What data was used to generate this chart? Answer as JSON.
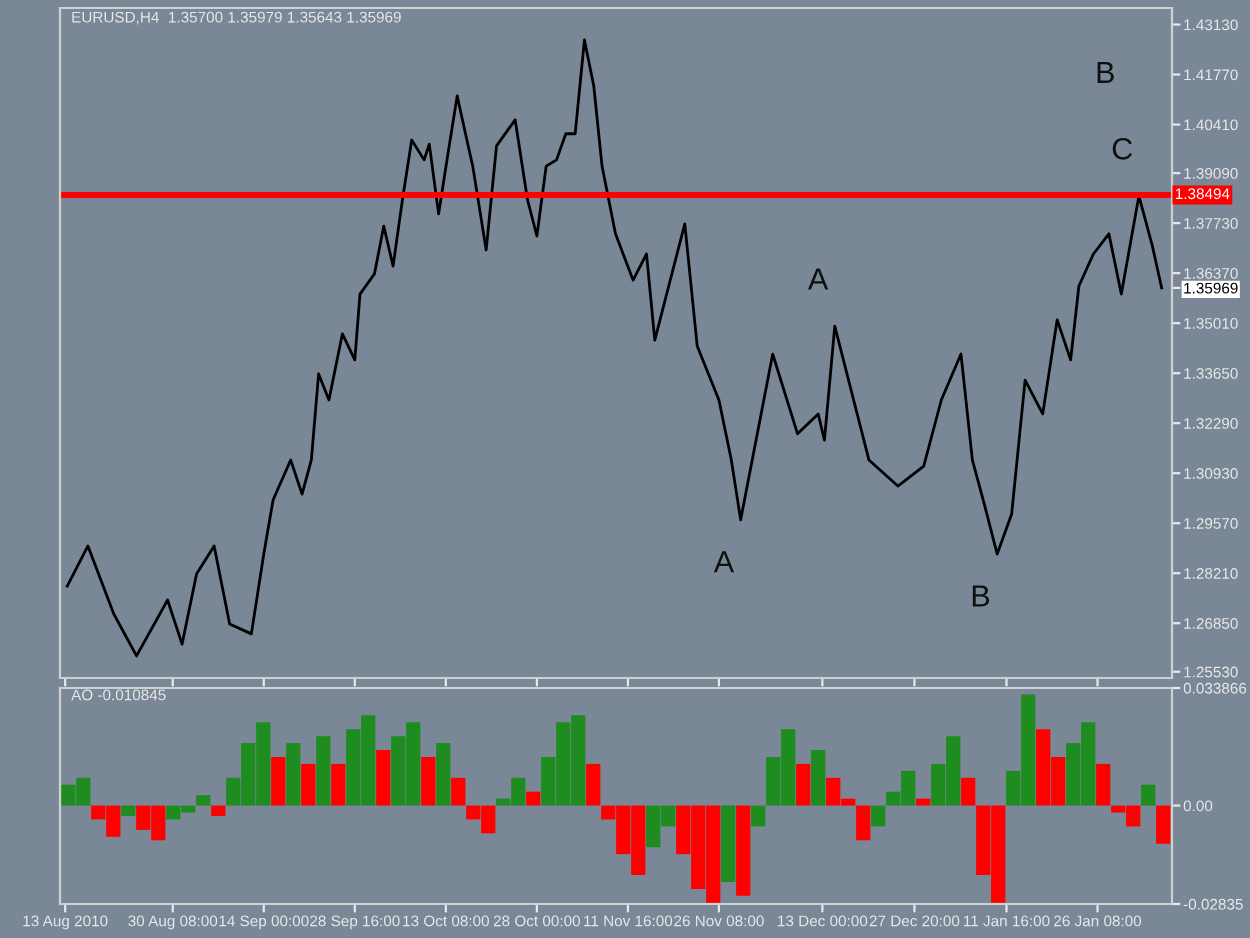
{
  "chart_data": [
    {
      "type": "line",
      "title": "EURUSD,H4  1.35700 1.35979 1.35643 1.35969",
      "tick_labels": "y",
      "grid": false,
      "legend": false,
      "marker": "none",
      "line_style": "solid",
      "xlim": [
        "2010-08-12T04:00",
        "2011-02-07T08:00"
      ],
      "ylim": [
        1.2536,
        1.4358
      ],
      "yticks": [
        {
          "value": 1.4313,
          "label": "1.43130"
        },
        {
          "value": 1.4177,
          "label": "1.41770"
        },
        {
          "value": 1.4041,
          "label": "1.40410"
        },
        {
          "value": 1.3909,
          "label": "1.39090"
        },
        {
          "value": 1.3773,
          "label": "1.37730"
        },
        {
          "value": 1.3637,
          "label": "1.36370"
        },
        {
          "value": 1.35969,
          "label": "1.35969"
        },
        {
          "value": 1.3501,
          "label": "1.35010"
        },
        {
          "value": 1.3365,
          "label": "1.33650"
        },
        {
          "value": 1.3229,
          "label": "1.32290"
        },
        {
          "value": 1.3093,
          "label": "1.30930"
        },
        {
          "value": 1.2957,
          "label": "1.29570"
        },
        {
          "value": 1.2821,
          "label": "1.28210"
        },
        {
          "value": 1.2685,
          "label": "1.26850"
        },
        {
          "value": 1.2553,
          "label": "1.25530"
        }
      ],
      "xticks": [
        {
          "value": "2010-08-13T00:00",
          "label": null
        },
        {
          "value": "2010-08-30T08:00",
          "label": null
        },
        {
          "value": "2010-09-14T00:00",
          "label": null
        },
        {
          "value": "2010-09-28T16:00",
          "label": null
        },
        {
          "value": "2010-10-13T08:00",
          "label": null
        },
        {
          "value": "2010-10-28T00:00",
          "label": null
        },
        {
          "value": "2010-11-11T16:00",
          "label": null
        },
        {
          "value": "2010-11-26T08:00",
          "label": null
        },
        {
          "value": "2010-12-13T00:00",
          "label": null
        },
        {
          "value": "2010-12-27T20:00",
          "label": null
        },
        {
          "value": "2011-01-11T16:00",
          "label": null
        },
        {
          "value": "2011-01-26T08:00",
          "label": null
        }
      ],
      "series": [
        {
          "color": "#000000",
          "x": [
            "2010-08-13T08:00",
            "2010-08-16T16:00",
            "2010-08-20T20:00",
            "2010-08-24T12:00",
            "2010-08-29T12:00",
            "2010-08-31T20:00",
            "2010-09-03T04:00",
            "2010-09-06T00:00",
            "2010-09-08T12:00",
            "2010-09-12T00:00",
            "2010-09-14T00:00",
            "2010-09-15T12:00",
            "2010-09-18T08:00",
            "2010-09-20T04:00",
            "2010-09-21T16:00",
            "2010-09-22T20:00",
            "2010-09-24T12:00",
            "2010-09-26T16:00",
            "2010-09-28T16:00",
            "2010-09-29T12:00",
            "2010-10-01T20:00",
            "2010-10-03T08:00",
            "2010-10-04T20:00",
            "2010-10-06T08:00",
            "2010-10-07T20:00",
            "2010-10-09T20:00",
            "2010-10-10T16:00",
            "2010-10-12T04:00",
            "2010-10-13T16:00",
            "2010-10-15T04:00",
            "2010-10-16T12:00",
            "2010-10-17T16:00",
            "2010-10-19T20:00",
            "2010-10-21T12:00",
            "2010-10-24T12:00",
            "2010-10-26T12:00",
            "2010-10-28T00:00",
            "2010-10-29T12:00",
            "2010-10-31T04:00",
            "2010-11-01T16:00",
            "2010-11-03T04:00",
            "2010-11-04T16:00",
            "2010-11-06T04:00",
            "2010-11-07T12:00",
            "2010-11-09T16:00",
            "2010-11-12T12:00",
            "2010-11-14T16:00",
            "2010-11-16T00:00",
            "2010-11-20T20:00",
            "2010-11-22T20:00",
            "2010-11-26T08:00",
            "2010-11-28T08:00",
            "2010-11-29T20:00",
            "2010-12-05T00:00",
            "2010-12-09T00:00",
            "2010-12-12T08:00",
            "2010-12-13T08:00",
            "2010-12-15T00:00",
            "2010-12-20T12:00",
            "2010-12-25T04:00",
            "2010-12-29T08:00",
            "2011-01-01T04:00",
            "2011-01-04T08:00",
            "2011-01-06T04:00",
            "2011-01-08T04:00",
            "2011-01-10T04:00",
            "2011-01-12T12:00",
            "2011-01-14T16:00",
            "2011-01-17T12:00",
            "2011-01-19T20:00",
            "2011-01-22T00:00",
            "2011-01-23T08:00",
            "2011-01-25T16:00",
            "2011-01-28T04:00",
            "2011-01-30T04:00",
            "2011-02-02T00:00",
            "2011-02-04T04:00",
            "2011-02-05T16:00"
          ],
          "values": [
            1.2786,
            1.2895,
            1.271,
            1.2596,
            1.2748,
            1.2628,
            1.2819,
            1.2895,
            1.2683,
            1.2656,
            1.2873,
            1.302,
            1.3129,
            1.3036,
            1.3129,
            1.3363,
            1.3292,
            1.3472,
            1.3401,
            1.358,
            1.3635,
            1.3765,
            1.3656,
            1.3836,
            1.3999,
            1.3945,
            1.3988,
            1.3798,
            1.3961,
            1.4119,
            1.4016,
            1.3928,
            1.37,
            1.3983,
            1.4054,
            1.3836,
            1.3738,
            1.3928,
            1.3945,
            1.4016,
            1.4016,
            1.4271,
            1.4146,
            1.3928,
            1.3744,
            1.3618,
            1.3689,
            1.3455,
            1.3771,
            1.3439,
            1.3292,
            1.3129,
            1.2966,
            1.3417,
            1.32,
            1.3254,
            1.3183,
            1.3493,
            1.3129,
            1.3058,
            1.3112,
            1.3292,
            1.3417,
            1.3129,
            1.3004,
            1.2873,
            1.2982,
            1.3346,
            1.3254,
            1.351,
            1.3401,
            1.3602,
            1.3689,
            1.3744,
            1.358,
            1.3847,
            1.3711,
            1.35969
          ]
        }
      ],
      "ref_lines": [
        {
          "axis": "y",
          "value": 1.38494,
          "label": "1.38494",
          "color": "#ff0000",
          "line_style": "solid"
        }
      ],
      "annotations": [
        {
          "text": "A",
          "x": "2010-11-29T20:00",
          "y": 1.2966
        },
        {
          "text": "A",
          "x": "2010-12-15T00:00",
          "y": 1.3493
        },
        {
          "text": "B",
          "x": "2011-01-10T04:00",
          "y": 1.2873
        },
        {
          "text": "C",
          "x": "2011-02-02T00:00",
          "y": 1.3847
        },
        "B"
      ]
    },
    {
      "type": "bar",
      "title": "AO -0.010845",
      "grid": false,
      "legend": false,
      "xlim": [
        "2010-08-12T04:00",
        "2011-02-07T08:00"
      ],
      "ylim": [
        -0.02835,
        0.033866
      ],
      "yticks": [
        {
          "value": 0.033866,
          "label": "0.033866"
        },
        {
          "value": 0,
          "label": "0.00"
        },
        {
          "value": -0.02835,
          "label": "-0.02835"
        }
      ],
      "xticks": [
        {
          "value": "2010-08-13T00:00",
          "label": "13 Aug 2010"
        },
        {
          "value": "2010-08-30T08:00",
          "label": "30 Aug 08:00"
        },
        {
          "value": "2010-09-14T00:00",
          "label": "14 Sep 00:00"
        },
        {
          "value": "2010-09-28T16:00",
          "label": "28 Sep 16:00"
        },
        {
          "value": "2010-10-13T08:00",
          "label": "13 Oct 08:00"
        },
        {
          "value": "2010-10-28T00:00",
          "label": "28 Oct 00:00"
        },
        {
          "value": "2010-11-11T16:00",
          "label": "11 Nov 16:00"
        },
        {
          "value": "2010-11-26T08:00",
          "label": "26 Nov 08:00"
        },
        {
          "value": "2010-12-13T00:00",
          "label": "13 Dec 00:00"
        },
        {
          "value": "2010-12-27T20:00",
          "label": "27 Dec 20:00"
        },
        {
          "value": "2011-01-11T16:00",
          "label": "11 Jan 16:00"
        },
        {
          "value": "2011-01-26T08:00",
          "label": "26 Jan 08:00"
        }
      ],
      "x": [
        "2010-08-13T12:00",
        "2010-08-15T22:00",
        "2010-08-18T08:00",
        "2010-08-20T18:00",
        "2010-08-23T04:00",
        "2010-08-25T14:00",
        "2010-08-28T00:00",
        "2010-08-30T10:00",
        "2010-09-01T20:00",
        "2010-09-04T06:00",
        "2010-09-06T16:00",
        "2010-09-09T02:00",
        "2010-09-11T12:00",
        "2010-09-13T22:00",
        "2010-09-16T08:00",
        "2010-09-18T18:00",
        "2010-09-21T04:00",
        "2010-09-23T14:00",
        "2010-09-26T00:00",
        "2010-09-28T10:00",
        "2010-09-30T20:00",
        "2010-10-03T06:00",
        "2010-10-05T16:00",
        "2010-10-08T02:00",
        "2010-10-10T12:00",
        "2010-10-12T22:00",
        "2010-10-15T08:00",
        "2010-10-17T18:00",
        "2010-10-20T04:00",
        "2010-10-22T14:00",
        "2010-10-25T00:00",
        "2010-10-27T10:00",
        "2010-10-29T20:00",
        "2010-11-01T06:00",
        "2010-11-03T16:00",
        "2010-11-06T02:00",
        "2010-11-08T12:00",
        "2010-11-10T22:00",
        "2010-11-13T08:00",
        "2010-11-15T18:00",
        "2010-11-18T04:00",
        "2010-11-20T14:00",
        "2010-11-23T00:00",
        "2010-11-25T10:00",
        "2010-11-27T20:00",
        "2010-11-30T06:00",
        "2010-12-02T16:00",
        "2010-12-05T02:00",
        "2010-12-07T12:00",
        "2010-12-09T22:00",
        "2010-12-12T08:00",
        "2010-12-14T18:00",
        "2010-12-17T04:00",
        "2010-12-19T14:00",
        "2010-12-22T00:00",
        "2010-12-24T10:00",
        "2010-12-26T20:00",
        "2010-12-29T06:00",
        "2010-12-31T16:00",
        "2011-01-03T02:00",
        "2011-01-05T12:00",
        "2011-01-07T22:00",
        "2011-01-10T08:00",
        "2011-01-12T18:00",
        "2011-01-15T04:00",
        "2011-01-17T14:00",
        "2011-01-20T00:00",
        "2011-01-22T10:00",
        "2011-01-24T20:00",
        "2011-01-27T06:00",
        "2011-01-29T16:00",
        "2011-02-01T02:00",
        "2011-02-03T12:00",
        "2011-02-05T22:00"
      ],
      "values": [
        0.006,
        0.008,
        -0.004,
        -0.009,
        -0.003,
        -0.007,
        -0.01,
        -0.004,
        -0.002,
        0.003,
        -0.003,
        0.008,
        0.018,
        0.024,
        0.014,
        0.018,
        0.012,
        0.02,
        0.012,
        0.022,
        0.026,
        0.016,
        0.02,
        0.024,
        0.014,
        0.018,
        0.008,
        -0.004,
        -0.008,
        0.002,
        0.008,
        0.004,
        0.014,
        0.024,
        0.026,
        0.012,
        -0.004,
        -0.014,
        -0.02,
        -0.012,
        -0.006,
        -0.014,
        -0.024,
        -0.028,
        -0.022,
        -0.026,
        -0.006,
        0.014,
        0.022,
        0.012,
        0.016,
        0.008,
        0.002,
        -0.01,
        -0.006,
        0.004,
        0.01,
        0.002,
        0.012,
        0.02,
        0.008,
        -0.02,
        -0.028,
        0.01,
        0.032,
        0.022,
        0.014,
        0.018,
        0.024,
        0.012,
        -0.002,
        -0.006,
        0.006,
        -0.011
      ],
      "colors": [
        "#1e8c1e",
        "#1e8c1e",
        "#ff0000",
        "#ff0000",
        "#1e8c1e",
        "#ff0000",
        "#ff0000",
        "#1e8c1e",
        "#1e8c1e",
        "#1e8c1e",
        "#ff0000",
        "#1e8c1e",
        "#1e8c1e",
        "#1e8c1e",
        "#ff0000",
        "#1e8c1e",
        "#ff0000",
        "#1e8c1e",
        "#ff0000",
        "#1e8c1e",
        "#1e8c1e",
        "#ff0000",
        "#1e8c1e",
        "#1e8c1e",
        "#ff0000",
        "#1e8c1e",
        "#ff0000",
        "#ff0000",
        "#ff0000",
        "#1e8c1e",
        "#1e8c1e",
        "#ff0000",
        "#1e8c1e",
        "#1e8c1e",
        "#1e8c1e",
        "#ff0000",
        "#ff0000",
        "#ff0000",
        "#ff0000",
        "#1e8c1e",
        "#1e8c1e",
        "#ff0000",
        "#ff0000",
        "#ff0000",
        "#1e8c1e",
        "#ff0000",
        "#1e8c1e",
        "#1e8c1e",
        "#1e8c1e",
        "#ff0000",
        "#1e8c1e",
        "#ff0000",
        "#ff0000",
        "#ff0000",
        "#1e8c1e",
        "#1e8c1e",
        "#1e8c1e",
        "#ff0000",
        "#1e8c1e",
        "#1e8c1e",
        "#ff0000",
        "#ff0000",
        "#ff0000",
        "#1e8c1e",
        "#1e8c1e",
        "#ff0000",
        "#ff0000",
        "#1e8c1e",
        "#1e8c1e",
        "#ff0000",
        "#ff0000",
        "#ff0000",
        "#1e8c1e",
        "#ff0000"
      ]
    }
  ]
}
